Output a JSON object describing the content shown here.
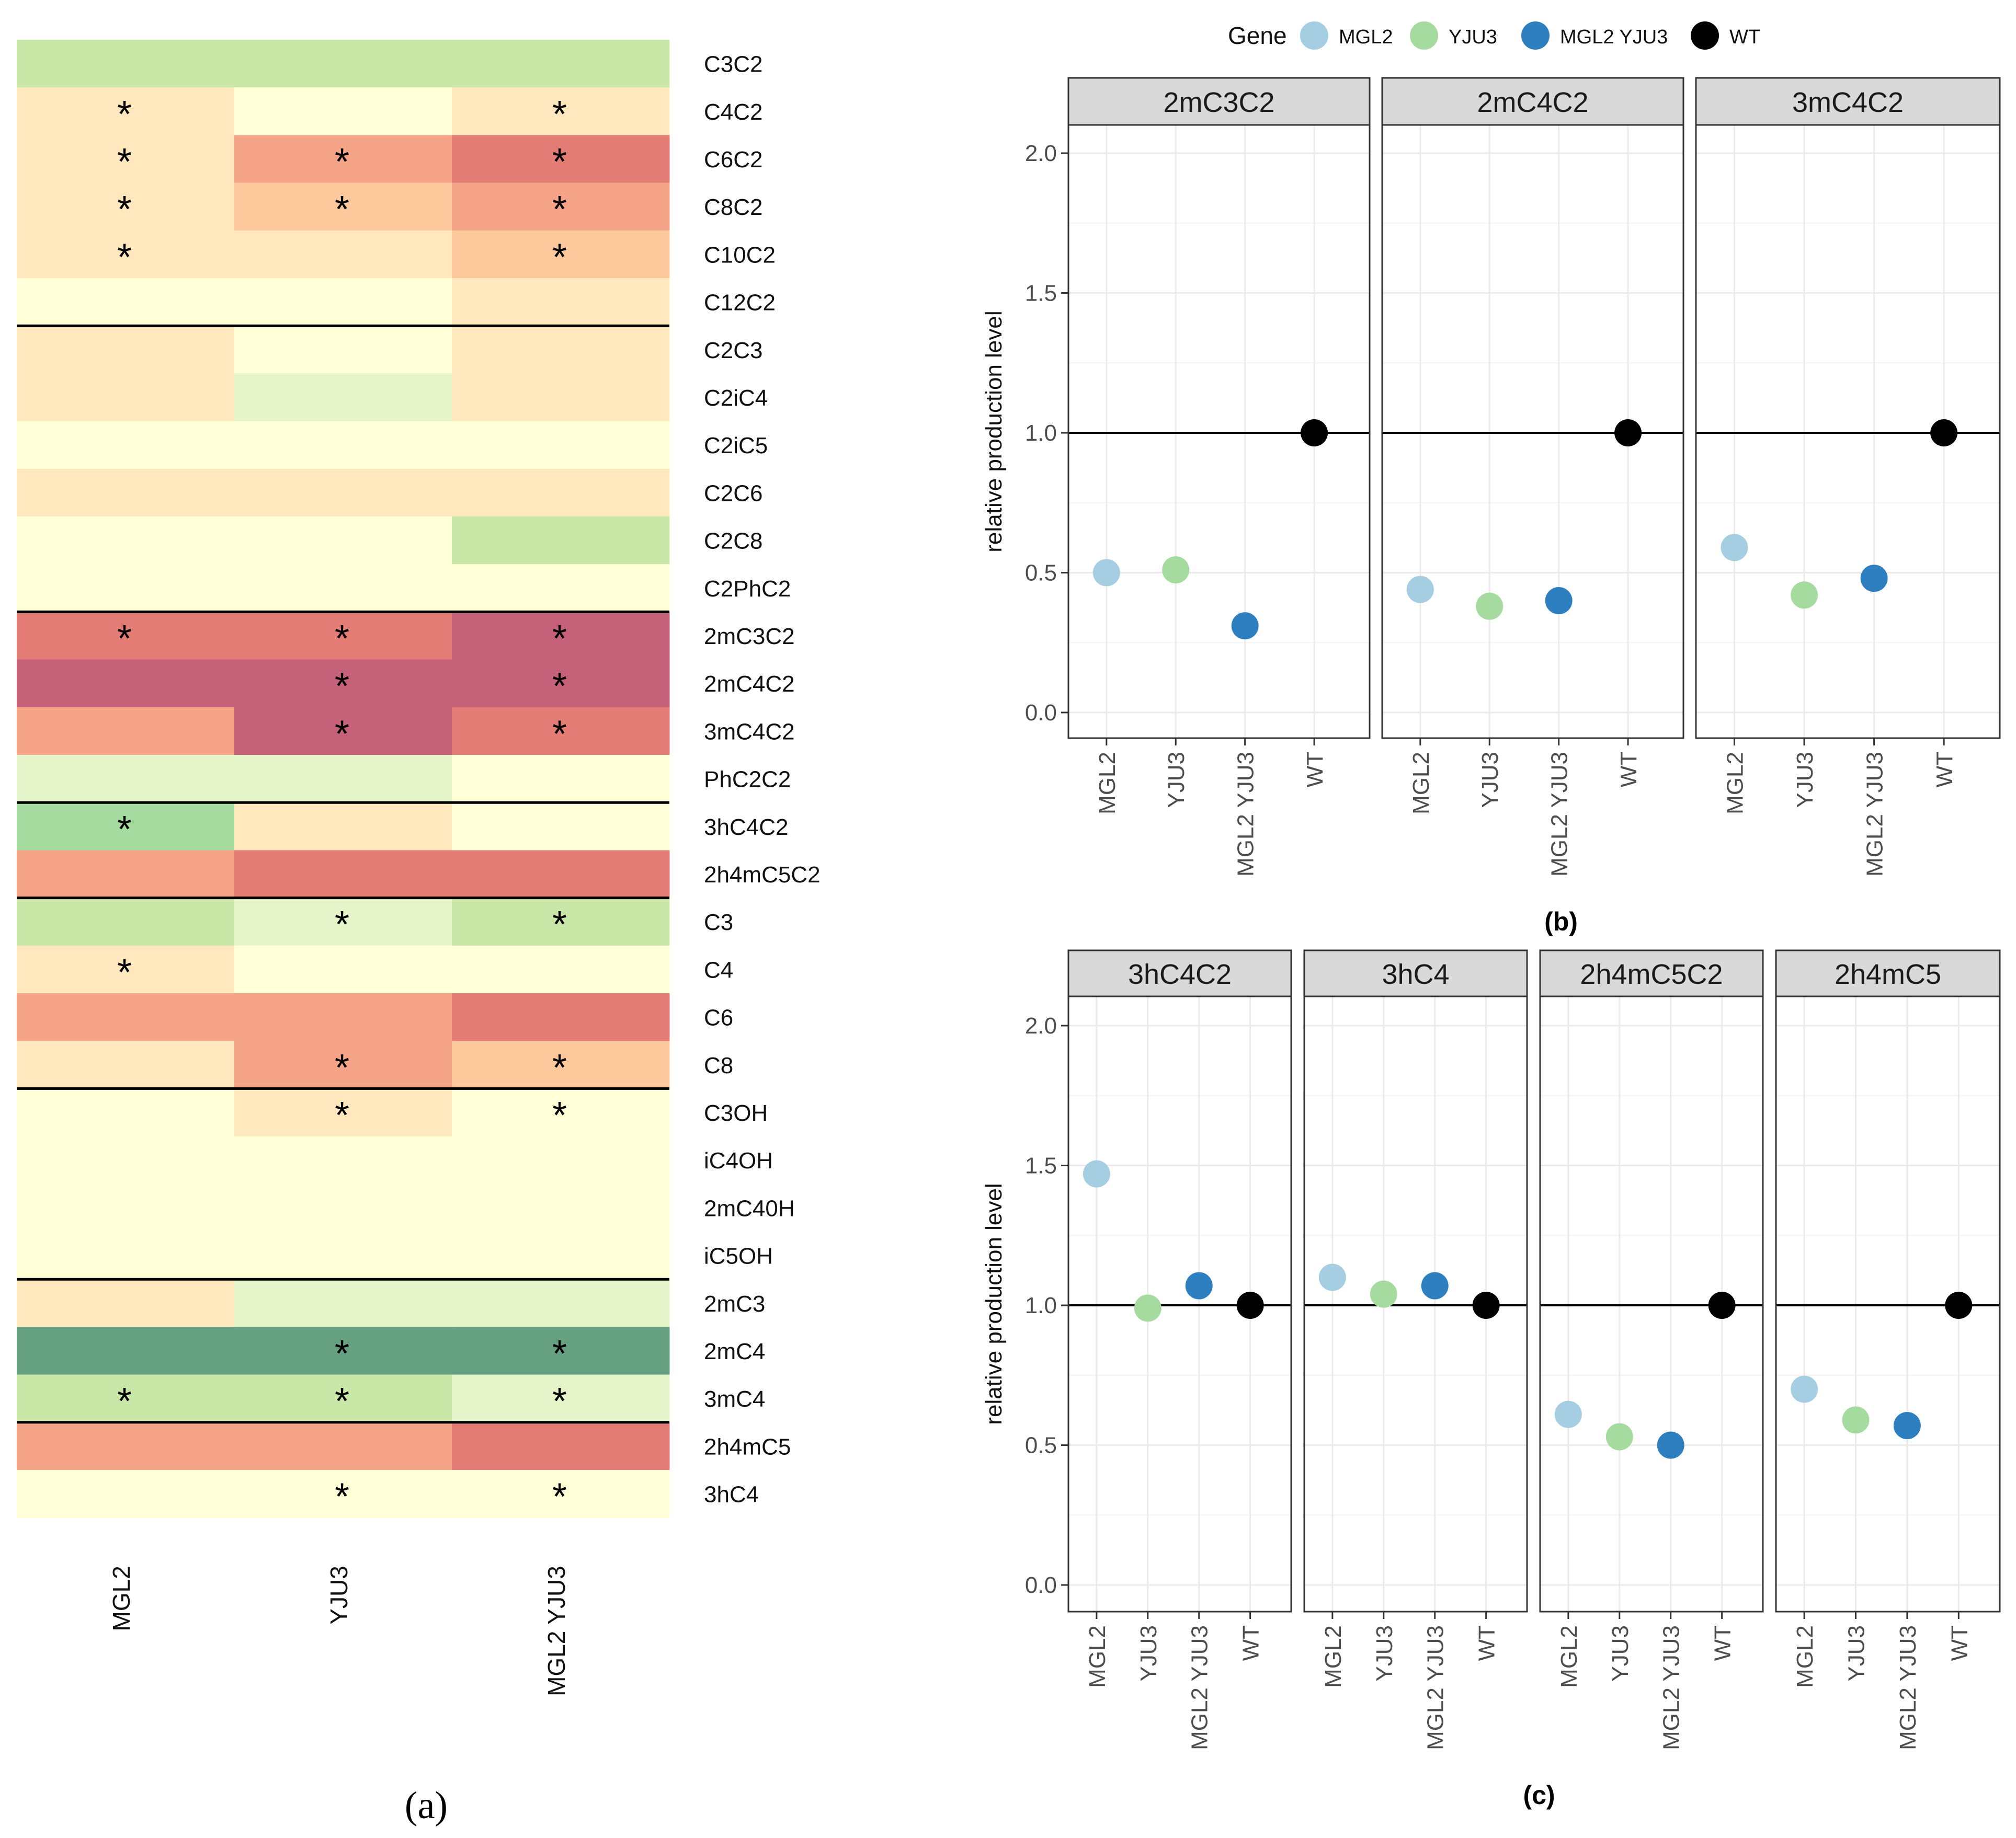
{
  "chart_data": [
    {
      "id": "a",
      "type": "heatmap",
      "panel_label": "(a)",
      "columns": [
        "MGL2",
        "YJU3",
        "MGL2 YJU3"
      ],
      "rows": [
        "C3C2",
        "C4C2",
        "C6C2",
        "C8C2",
        "C10C2",
        "C12C2",
        "C2C3",
        "C2iC4",
        "C2iC5",
        "C2C6",
        "C2C8",
        "C2PhC2",
        "2mC3C2",
        "2mC4C2",
        "3mC4C2",
        "PhC2C2",
        "3hC4C2",
        "2h4mC5C2",
        "C3",
        "C4",
        "C6",
        "C8",
        "C3OH",
        "iC4OH",
        "2mC40H",
        "iC5OH",
        "2mC3",
        "2mC4",
        "3mC4",
        "2h4mC5",
        "3hC4"
      ],
      "levels": [
        [
          1,
          1,
          1
        ],
        [
          -1,
          0,
          -1
        ],
        [
          -1,
          -3,
          -4
        ],
        [
          -1,
          -2,
          -3
        ],
        [
          -1,
          -1,
          -2
        ],
        [
          0,
          0,
          -1
        ],
        [
          -1,
          0,
          -1
        ],
        [
          -1,
          0.5,
          -1
        ],
        [
          0,
          0,
          0
        ],
        [
          -1,
          -1,
          -1
        ],
        [
          0,
          0,
          1
        ],
        [
          0,
          0,
          0
        ],
        [
          -4,
          -4,
          -5
        ],
        [
          -5,
          -5,
          -5
        ],
        [
          -3,
          -5,
          -4
        ],
        [
          0.5,
          0.5,
          0
        ],
        [
          2,
          -1,
          0
        ],
        [
          -3,
          -4,
          -4
        ],
        [
          1,
          0.5,
          1
        ],
        [
          -1,
          0,
          0
        ],
        [
          -3,
          -3,
          -4
        ],
        [
          -1,
          -3,
          -2
        ],
        [
          0,
          -1,
          0
        ],
        [
          0,
          0,
          0
        ],
        [
          0,
          0,
          0
        ],
        [
          0,
          0,
          0
        ],
        [
          -1,
          0.5,
          0.5
        ],
        [
          3,
          3,
          3
        ],
        [
          1,
          1,
          0.5
        ],
        [
          -3,
          -3,
          -4
        ],
        [
          0,
          0,
          0
        ]
      ],
      "significant": [
        [
          0,
          0,
          0
        ],
        [
          1,
          0,
          1
        ],
        [
          1,
          1,
          1
        ],
        [
          1,
          1,
          1
        ],
        [
          1,
          0,
          1
        ],
        [
          0,
          0,
          0
        ],
        [
          0,
          0,
          0
        ],
        [
          0,
          0,
          0
        ],
        [
          0,
          0,
          0
        ],
        [
          0,
          0,
          0
        ],
        [
          0,
          0,
          0
        ],
        [
          0,
          0,
          0
        ],
        [
          1,
          1,
          1
        ],
        [
          0,
          1,
          1
        ],
        [
          0,
          1,
          1
        ],
        [
          0,
          0,
          0
        ],
        [
          1,
          0,
          0
        ],
        [
          0,
          0,
          0
        ],
        [
          0,
          1,
          1
        ],
        [
          1,
          0,
          0
        ],
        [
          0,
          0,
          0
        ],
        [
          0,
          1,
          1
        ],
        [
          0,
          1,
          1
        ],
        [
          0,
          0,
          0
        ],
        [
          0,
          0,
          0
        ],
        [
          0,
          0,
          0
        ],
        [
          0,
          0,
          0
        ],
        [
          0,
          1,
          1
        ],
        [
          1,
          1,
          1
        ],
        [
          0,
          0,
          0
        ],
        [
          0,
          1,
          1
        ]
      ],
      "marker": "*",
      "group_breaks_after_rows": [
        "C12C2",
        "C2PhC2",
        "PhC2C2",
        "2h4mC5C2",
        "C8",
        "iC5OH",
        "3mC4"
      ],
      "palette": {
        "5": "#2e8b57",
        "3": "#66a182",
        "2": "#a6dba0",
        "1": "#c9e8a8",
        "0.5": "#e6f5c9",
        "0": "#ffffd8",
        "-1": "#ffe8bd",
        "-2": "#fdc89b",
        "-3": "#f6a488",
        "-4": "#e37d76",
        "-5": "#c6617a"
      }
    },
    {
      "id": "b",
      "type": "scatter",
      "panel_label": "(b)",
      "ylabel": "relative production level",
      "ylim": [
        0,
        2.1
      ],
      "yticks": [
        "0.0",
        "0.5",
        "1.0",
        "1.5",
        "2.0"
      ],
      "categories": [
        "MGL2",
        "YJU3",
        "MGL2  YJU3",
        "WT"
      ],
      "reference_line": 1.0,
      "facets": [
        {
          "title": "2mC3C2",
          "values": [
            0.5,
            0.51,
            0.31,
            1.0
          ]
        },
        {
          "title": "2mC4C2",
          "values": [
            0.44,
            0.38,
            0.4,
            1.0
          ]
        },
        {
          "title": "3mC4C2",
          "values": [
            0.59,
            0.42,
            0.48,
            1.0
          ]
        }
      ]
    },
    {
      "id": "c",
      "type": "scatter",
      "panel_label": "(c)",
      "ylabel": "relative production level",
      "ylim": [
        -0.1,
        2.1
      ],
      "yticks": [
        "0.0",
        "0.5",
        "1.0",
        "1.5",
        "2.0"
      ],
      "categories": [
        "MGL2",
        "YJU3",
        "MGL2  YJU3",
        "WT"
      ],
      "reference_line": 1.0,
      "facets": [
        {
          "title": "3hC4C2",
          "values": [
            1.47,
            0.99,
            1.07,
            1.0
          ]
        },
        {
          "title": "3hC4",
          "values": [
            1.1,
            1.04,
            1.07,
            1.0
          ]
        },
        {
          "title": "2h4mC5C2",
          "values": [
            0.61,
            0.53,
            0.5,
            1.0
          ]
        },
        {
          "title": "2h4mC5",
          "values": [
            0.7,
            0.59,
            0.57,
            1.0
          ]
        }
      ]
    }
  ],
  "legend": {
    "title": "Gene",
    "items": [
      {
        "label": "MGL2",
        "color": "#a6cee3"
      },
      {
        "label": "YJU3",
        "color": "#a6dba0"
      },
      {
        "label": "MGL2  YJU3",
        "color": "#2e7fbf"
      },
      {
        "label": "WT",
        "color": "#000000"
      }
    ]
  },
  "colors": {
    "facet_strip": "#d9d9d9",
    "grid": "#ebebeb",
    "panel_border": "#333333",
    "MGL2": "#a6cee3",
    "YJU3": "#a6dba0",
    "MGL2  YJU3": "#2e7fbf",
    "WT": "#000000"
  }
}
